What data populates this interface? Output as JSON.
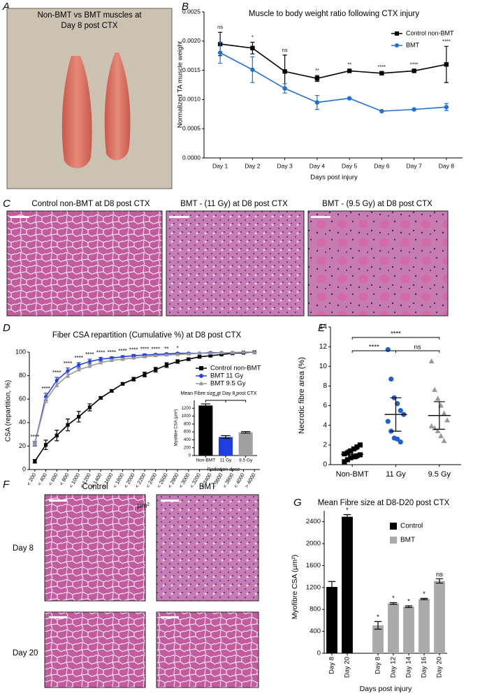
{
  "panels": {
    "A": {
      "letter": "A",
      "caption": [
        "Non-BMT vs BMT muscles at",
        "Day 8 post CTX"
      ]
    },
    "B": {
      "letter": "B"
    },
    "C": {
      "letter": "C",
      "titles": [
        "Control non-BMT at D8 post CTX",
        "BMT - (11 Gy) at D8 post CTX",
        "BMT - (9.5 Gy) at D8 post CTX"
      ]
    },
    "D": {
      "letter": "D"
    },
    "E": {
      "letter": "E"
    },
    "F": {
      "letter": "F",
      "columns": [
        "Control",
        "BMT"
      ],
      "rows": [
        "Day 8",
        "Day 20"
      ]
    },
    "G": {
      "letter": "G"
    }
  },
  "chart_data": [
    {
      "type": "line",
      "title": "Muscle to body weight ratio following CTX injury",
      "x_label": "Days post injury",
      "y_label": "Normalized TA muscle weight",
      "categories": [
        "Day 1",
        "Day 2",
        "Day 3",
        "Day 4",
        "Day 5",
        "Day 6",
        "Day 7",
        "Day 8"
      ],
      "ylim": [
        0,
        0.0025
      ],
      "yticks": [
        {
          "value": 0,
          "label": "0.0000"
        },
        {
          "value": 0.0005,
          "label": "0.0005"
        },
        {
          "value": 0.001,
          "label": "0.0010"
        },
        {
          "value": 0.0015,
          "label": "0.0015"
        },
        {
          "value": 0.002,
          "label": "0.0020"
        },
        {
          "value": 0.0025,
          "label": "0.0025"
        }
      ],
      "legend": "upper right",
      "significance": [
        "ns",
        "*",
        "ns",
        "**",
        "**",
        "****",
        "****",
        "****"
      ],
      "series": [
        {
          "name": "Control non-BMT",
          "color": "#000000",
          "marker": "square",
          "values": [
            0.00195,
            0.00188,
            0.00148,
            0.00136,
            0.00149,
            0.00145,
            0.00149,
            0.0016
          ],
          "errors": [
            0.0002,
            0.0001,
            0.00028,
            5e-05,
            2e-05,
            2e-05,
            2e-05,
            0.00031
          ]
        },
        {
          "name": "BMT",
          "color": "#1f6fd6",
          "marker": "circle",
          "values": [
            0.0018,
            0.00151,
            0.00119,
            0.00095,
            0.00102,
            0.0008,
            0.00083,
            0.00087
          ],
          "errors": [
            0.00018,
            0.00022,
            8e-05,
            0.00012,
            1e-05,
            1e-05,
            1e-05,
            6e-05
          ]
        }
      ]
    },
    {
      "type": "line",
      "title": "Fiber CSA repartition (Cumulative %) at D8 post CTX",
      "x_label": "µm²",
      "y_label": "CSA (repartition, %)",
      "categories": [
        "< 200",
        "< 400",
        "< 600",
        "< 800",
        "< 1000",
        "< 1200",
        "< 1400",
        "< 1600",
        "< 1800",
        "< 2000",
        "< 2200",
        "< 2400",
        "< 2600",
        "< 2800",
        "< 3000",
        "< 3200",
        "< 3400",
        "< 3600",
        "< 3800",
        "< 4000",
        "> 4000"
      ],
      "ylim": [
        0,
        100
      ],
      "yticks": [
        0,
        20,
        40,
        60,
        80,
        100
      ],
      "legend": "center right",
      "significance": [
        "****",
        "****",
        "****",
        "****",
        "****",
        "****",
        "****",
        "****",
        "****",
        "****",
        "****",
        "****",
        "**",
        "*",
        null,
        null,
        null,
        null,
        null,
        null,
        null
      ],
      "series": [
        {
          "name": "Control non-BMT",
          "color": "#000000",
          "marker": "square",
          "values": [
            7,
            21,
            29,
            38,
            45,
            53,
            61,
            67,
            73,
            77,
            81,
            85,
            89,
            92,
            94,
            96,
            97,
            98,
            99,
            99.5,
            100
          ],
          "errors": [
            1.5,
            4,
            4.5,
            5,
            4.5,
            3,
            1,
            1,
            1,
            1.5,
            2,
            2,
            2,
            1.5,
            1,
            1,
            1,
            0.5,
            0.5,
            0.5,
            0
          ]
        },
        {
          "name": "BMT 11 Gy",
          "color": "#2442e0",
          "marker": "circle",
          "values": [
            22,
            62,
            76,
            84,
            89,
            92,
            94,
            95,
            96,
            97,
            97.5,
            98,
            98.5,
            99,
            99,
            99,
            99.5,
            99.5,
            99.5,
            100,
            100
          ],
          "errors": [
            2,
            3,
            2.5,
            2.5,
            2,
            2,
            1.5,
            1,
            1,
            1,
            1,
            0.5,
            0.5,
            0.5,
            0.5,
            0.5,
            0.5,
            0.5,
            0.5,
            0,
            0
          ]
        },
        {
          "name": "BMT 9.5 Gy",
          "color": "#999999",
          "marker": "triangle",
          "values": [
            22,
            59,
            72,
            80,
            85,
            88,
            91,
            93,
            94,
            95,
            96,
            97,
            97.5,
            98,
            98.5,
            99,
            99,
            99.5,
            99.5,
            100,
            100
          ],
          "errors": [
            1.5,
            2,
            1.5,
            1.5,
            1,
            1,
            1,
            1,
            1,
            0.5,
            0.5,
            0.5,
            0.5,
            0.5,
            0.5,
            0.5,
            0.5,
            0.5,
            0.5,
            0,
            0
          ]
        }
      ]
    },
    {
      "type": "bar",
      "title": "Mean Fibre size at Day 8 post CTX",
      "x_label": "Radiation dose",
      "y_label": "Myofibre CSA (µm²)",
      "categories": [
        "Non-BMT",
        "11 Gy",
        "9.5 Gy"
      ],
      "values": [
        1270,
        470,
        590
      ],
      "errors": [
        40,
        35,
        20
      ],
      "colors": [
        "#000000",
        "#1f3fe0",
        "#a0a0a0"
      ],
      "ylim": [
        0,
        1400
      ],
      "yticks": [
        0,
        200,
        400,
        600,
        800,
        1000,
        1200
      ],
      "comparisons": [
        {
          "from": "Non-BMT",
          "to": "11 Gy",
          "label": "****"
        },
        {
          "from": "11 Gy",
          "to": "9.5 Gy",
          "label": "*"
        }
      ]
    },
    {
      "type": "strip",
      "y_label": "Necrotic fibre area (%)",
      "categories": [
        "Non-BMT",
        "11 Gy",
        "9.5 Gy"
      ],
      "ylim": [
        0,
        14
      ],
      "yticks": [
        0,
        2,
        4,
        6,
        8,
        10,
        12,
        14
      ],
      "groups": [
        {
          "color": "#000000",
          "marker": "square",
          "values": [
            0.3,
            0.5,
            0.7,
            0.8,
            0.9,
            1.0,
            1.1,
            1.2,
            1.4,
            1.6,
            1.8,
            2.0
          ],
          "mean": 1.05,
          "sd": 0.45
        },
        {
          "color": "#1f5fd0",
          "marker": "circle",
          "values": [
            11.7,
            8.7,
            6.8,
            6.2,
            5.5,
            5.1,
            4.4,
            3.4,
            2.7,
            2.6,
            2.3
          ],
          "mean": 5.1,
          "sd": 1.7
        },
        {
          "color": "#999999",
          "marker": "triangle",
          "values": [
            10.5,
            7.6,
            6.7,
            6.0,
            5.2,
            4.5,
            3.9,
            3.7,
            3.4,
            2.9,
            2.4
          ],
          "mean": 5.0,
          "sd": 1.4
        }
      ],
      "comparisons": [
        {
          "from": "Non-BMT",
          "to": "9.5 Gy",
          "label": "****"
        },
        {
          "from": "Non-BMT",
          "to": "11 Gy",
          "label": "****"
        },
        {
          "from": "11 Gy",
          "to": "9.5 Gy",
          "label": "ns"
        }
      ]
    },
    {
      "type": "bar",
      "title": "Mean Fibre size at D8-D20 post CTX",
      "x_label": "Days post injury",
      "y_label": "Myofibre CSA (µm²)",
      "categories": [
        "Day 8",
        "Day 20",
        null,
        "Day 8",
        "Day 12",
        "Day 14",
        "Day 16",
        "Day 20"
      ],
      "ylim": [
        0,
        2600
      ],
      "yticks": [
        0,
        400,
        800,
        1200,
        1600,
        2000,
        2400
      ],
      "legend": "upper right",
      "series": [
        {
          "name": "Control",
          "color": "#000000",
          "values": [
            1210,
            2490,
            null,
            null,
            null,
            null,
            null,
            null
          ],
          "errors": [
            100,
            40,
            null,
            null,
            null,
            null,
            null,
            null
          ],
          "significance": [
            null,
            "*",
            null,
            null,
            null,
            null,
            null,
            null
          ]
        },
        {
          "name": "BMT",
          "color": "#aaaaaa",
          "values": [
            null,
            null,
            null,
            510,
            910,
            850,
            990,
            1320
          ],
          "errors": [
            null,
            null,
            null,
            70,
            15,
            15,
            12,
            40
          ],
          "significance": [
            null,
            null,
            null,
            "*",
            "*",
            "*",
            "*",
            "ns"
          ]
        }
      ]
    }
  ]
}
